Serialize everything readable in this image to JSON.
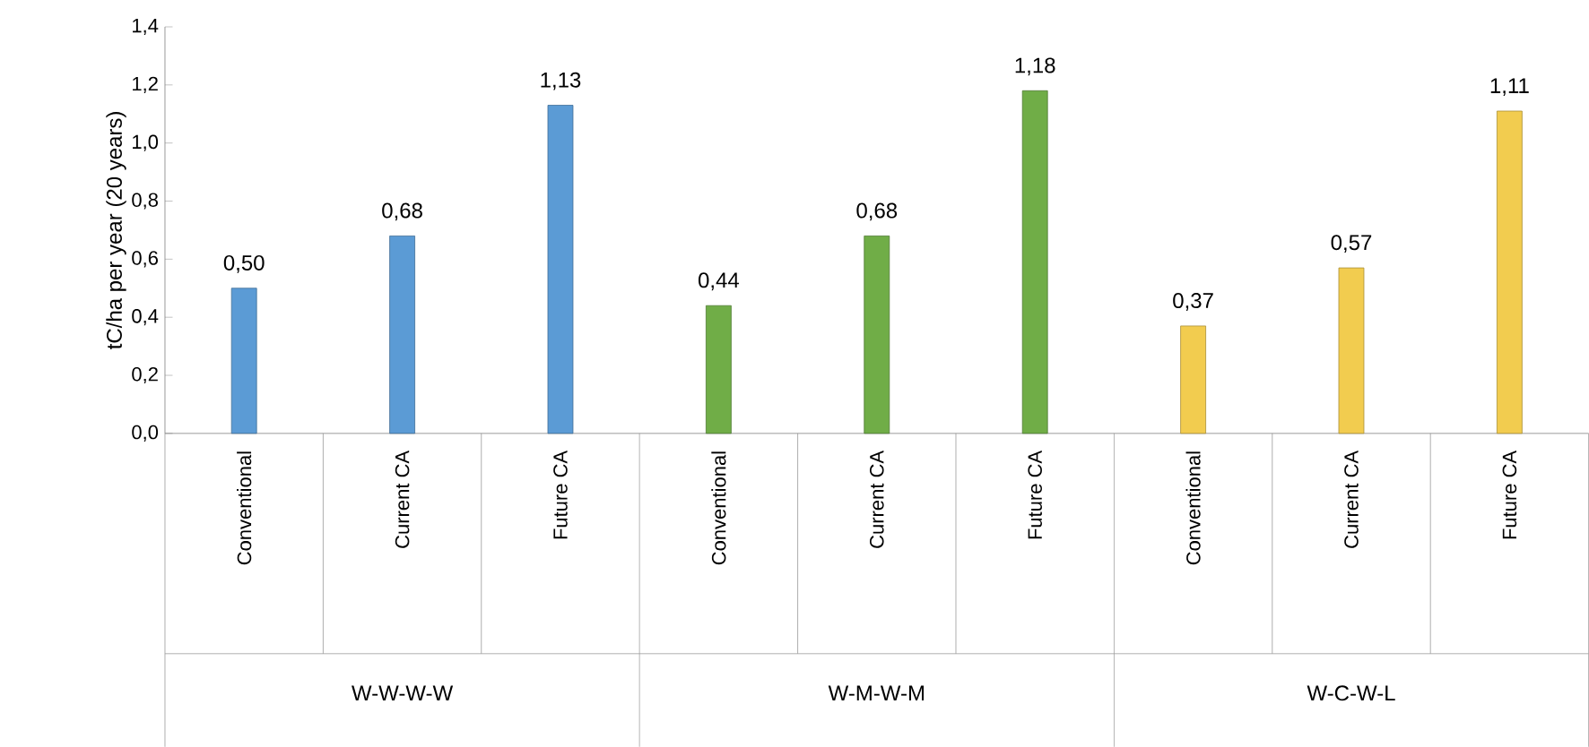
{
  "chart_data": {
    "type": "bar",
    "ylabel": "tC/ha per year (20 years)",
    "categories": [
      "Conventional",
      "Current CA",
      "Future CA",
      "Conventional",
      "Current CA",
      "Future CA",
      "Conventional",
      "Current CA",
      "Future CA"
    ],
    "values": [
      0.5,
      0.68,
      1.13,
      0.44,
      0.68,
      1.18,
      0.37,
      0.57,
      1.11
    ],
    "value_labels": [
      "0,50",
      "0,68",
      "1,13",
      "0,44",
      "0,68",
      "1,18",
      "0,37",
      "0,57",
      "1,11"
    ],
    "colors": [
      "#5b9bd5",
      "#5b9bd5",
      "#5b9bd5",
      "#70ad47",
      "#70ad47",
      "#70ad47",
      "#f2cc4f",
      "#f2cc4f",
      "#f2cc4f"
    ],
    "annotations": [
      "W-W-W-W",
      "W-M-W-M",
      "W-C-W-L"
    ],
    "ylim": [
      0,
      1.4
    ],
    "yticks": [
      {
        "value": 0,
        "label": "0,0"
      },
      {
        "value": 0.2,
        "label": "0,2"
      },
      {
        "value": 0.4,
        "label": "0,4"
      },
      {
        "value": 0.6,
        "label": "0,6"
      },
      {
        "value": 0.8,
        "label": "0,8"
      },
      {
        "value": 1.0,
        "label": "1,0"
      },
      {
        "value": 1.2,
        "label": "1,2"
      },
      {
        "value": 1.4,
        "label": "1,4"
      }
    ]
  }
}
